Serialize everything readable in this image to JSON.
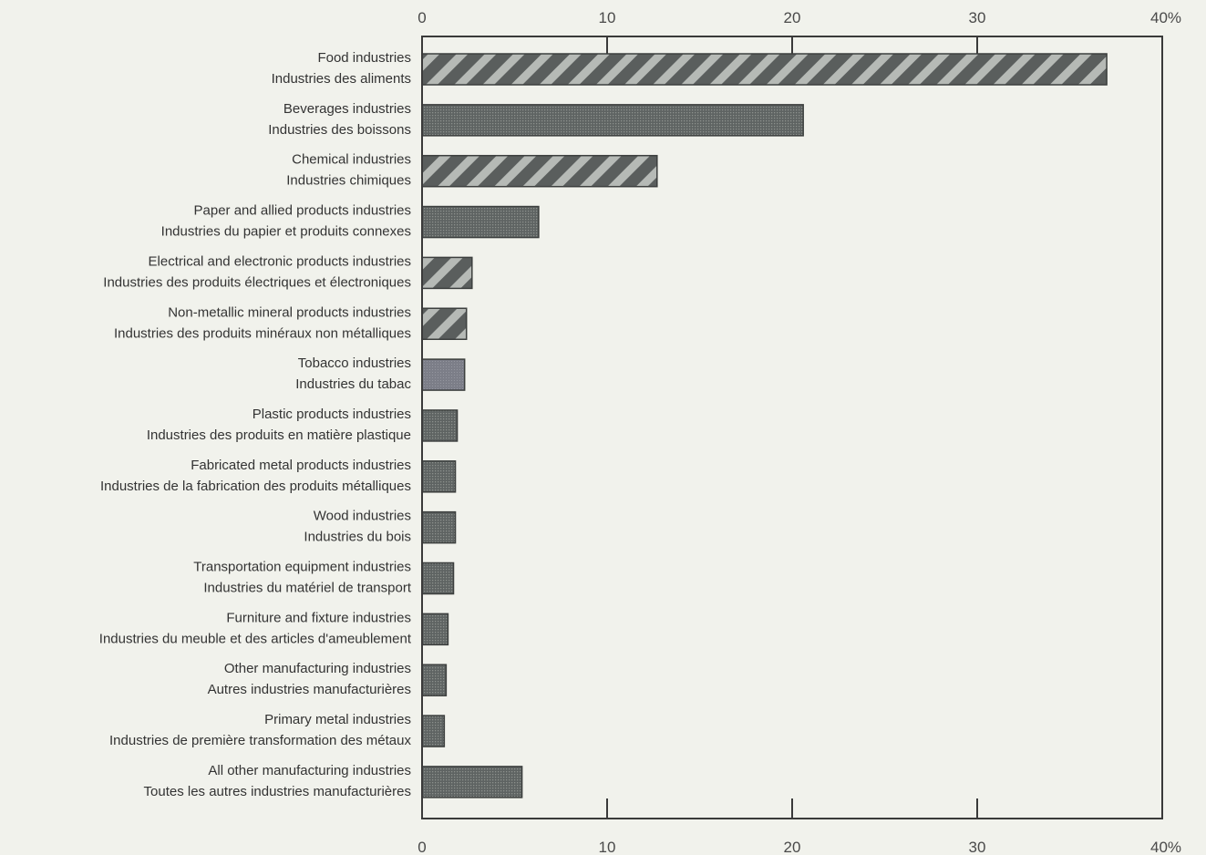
{
  "chart_data": {
    "type": "bar",
    "orientation": "horizontal",
    "categories": [
      [
        "Food industries",
        "Industries des aliments"
      ],
      [
        "Beverages industries",
        "Industries des boissons"
      ],
      [
        "Chemical industries",
        "Industries chimiques"
      ],
      [
        "Paper and allied products industries",
        "Industries du papier et produits connexes"
      ],
      [
        "Electrical and electronic products industries",
        "Industries des produits électriques et électroniques"
      ],
      [
        "Non-metallic mineral products industries",
        "Industries des produits minéraux non métalliques"
      ],
      [
        "Tobacco industries",
        "Industries du tabac"
      ],
      [
        "Plastic products industries",
        "Industries des produits en matière plastique"
      ],
      [
        "Fabricated metal products industries",
        "Industries de la fabrication des produits métalliques"
      ],
      [
        "Wood industries",
        "Industries du bois"
      ],
      [
        "Transportation equipment industries",
        "Industries du matériel de transport"
      ],
      [
        "Furniture and fixture industries",
        "Industries du meuble et des articles d'ameublement"
      ],
      [
        "Other manufacturing industries",
        "Autres industries manufacturières"
      ],
      [
        "Primary metal industries",
        "Industries de première transformation des métaux"
      ],
      [
        "All other manufacturing industries",
        "Toutes les autres industries manufacturières"
      ]
    ],
    "values": [
      37.0,
      20.6,
      12.7,
      6.3,
      2.7,
      2.4,
      2.3,
      1.9,
      1.8,
      1.8,
      1.7,
      1.4,
      1.3,
      1.2,
      5.4
    ],
    "patterns": [
      "hatched",
      "dotted",
      "hatched",
      "dotted",
      "hatched",
      "hatched",
      "solid",
      "dotted",
      "dotted",
      "dotted",
      "dotted",
      "dotted",
      "dotted",
      "dotted",
      "dotted"
    ],
    "xlim": [
      0,
      40
    ],
    "xticks": [
      0,
      10,
      20,
      30,
      40
    ],
    "tick_labels": [
      "0",
      "10",
      "20",
      "30",
      "40%"
    ],
    "grid": false,
    "title": "",
    "xlabel": "",
    "ylabel": "",
    "colors": {
      "bar_dark": "#55595a",
      "bar_hatch_light": "#b4b8b4",
      "bar_tobacco": "#7a7c86",
      "axis": "#3a3a3a",
      "background": "#f1f2ec"
    }
  }
}
